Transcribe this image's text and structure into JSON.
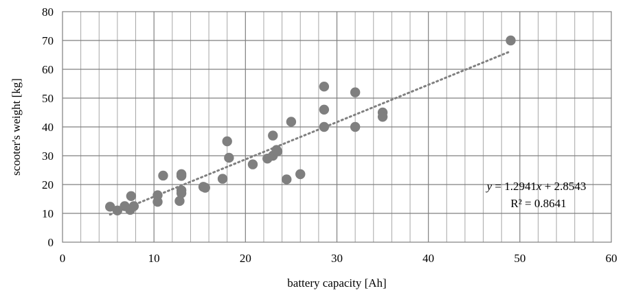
{
  "chart_data": {
    "type": "scatter",
    "xlabel": "battery capacity [Ah]",
    "ylabel": "scooter's weight [kg]",
    "xlim": [
      0,
      60
    ],
    "ylim": [
      0,
      80
    ],
    "x_ticks": [
      "0",
      "10",
      "20",
      "30",
      "40",
      "50",
      "60"
    ],
    "y_ticks": [
      "0",
      "10",
      "20",
      "30",
      "40",
      "50",
      "60",
      "70",
      "80"
    ],
    "grid": true,
    "colors": {
      "points": "#7f7f7f",
      "trendline": "#7f7f7f",
      "grid": "#a6a6a6"
    },
    "series": [
      {
        "points": [
          [
            5.2,
            12.3
          ],
          [
            6.0,
            11.0
          ],
          [
            6.8,
            12.5
          ],
          [
            7.4,
            11.2
          ],
          [
            7.5,
            16.0
          ],
          [
            7.8,
            12.5
          ],
          [
            10.4,
            16.3
          ],
          [
            10.4,
            14.0
          ],
          [
            11.0,
            23.1
          ],
          [
            12.8,
            14.3
          ],
          [
            13.0,
            18.0
          ],
          [
            13.0,
            23.0
          ],
          [
            13.0,
            23.6
          ],
          [
            13.0,
            17.0
          ],
          [
            15.4,
            19.2
          ],
          [
            15.6,
            18.9
          ],
          [
            17.5,
            22.0
          ],
          [
            18.0,
            35.0
          ],
          [
            18.2,
            29.3
          ],
          [
            20.8,
            27.0
          ],
          [
            22.4,
            29.0
          ],
          [
            23.0,
            37.0
          ],
          [
            23.0,
            30.0
          ],
          [
            23.4,
            32.0
          ],
          [
            23.5,
            31.5
          ],
          [
            24.5,
            21.8
          ],
          [
            25.0,
            41.8
          ],
          [
            26.0,
            23.6
          ],
          [
            28.6,
            54.0
          ],
          [
            28.6,
            46.0
          ],
          [
            28.6,
            40.0
          ],
          [
            32.0,
            52.0
          ],
          [
            32.0,
            40.0
          ],
          [
            35.0,
            45.0
          ],
          [
            35.0,
            43.5
          ],
          [
            49.0,
            70.0
          ]
        ]
      }
    ],
    "trendline": {
      "type": "linear",
      "x_start": 5.2,
      "x_end": 49.0,
      "slope": 1.2941,
      "intercept": 2.8543,
      "equation_var": "y",
      "equation_rest": " = 1.2941",
      "equation_x": "x",
      "equation_tail": " + 2.8543",
      "r2": "R² = 0.8641"
    }
  }
}
